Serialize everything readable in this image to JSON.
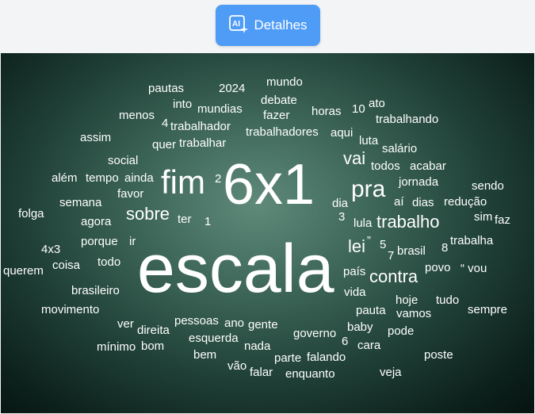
{
  "header": {
    "details_button_label": "Detalhes",
    "button_color": "#4f9cf7",
    "icon": "ai-sparkle-icon"
  },
  "wordcloud": {
    "words": [
      {
        "text": "escala"
      },
      {
        "text": "6x1"
      },
      {
        "text": "fim"
      },
      {
        "text": "pra"
      },
      {
        "text": "contra"
      },
      {
        "text": "trabalho"
      },
      {
        "text": "sobre"
      },
      {
        "text": "vai"
      },
      {
        "text": "lei"
      },
      {
        "text": "”"
      },
      {
        "text": "pautas"
      },
      {
        "text": "2024"
      },
      {
        "text": "mundo"
      },
      {
        "text": "into"
      },
      {
        "text": "mundias"
      },
      {
        "text": "debate"
      },
      {
        "text": "horas"
      },
      {
        "text": "10"
      },
      {
        "text": "ato"
      },
      {
        "text": "menos"
      },
      {
        "text": "4"
      },
      {
        "text": "trabalhador"
      },
      {
        "text": "fazer"
      },
      {
        "text": "trabalhadores"
      },
      {
        "text": "aqui"
      },
      {
        "text": "trabalhando"
      },
      {
        "text": "assim"
      },
      {
        "text": "quer"
      },
      {
        "text": "trabalhar"
      },
      {
        "text": "luta"
      },
      {
        "text": "salário"
      },
      {
        "text": "social"
      },
      {
        "text": "todos"
      },
      {
        "text": "acabar"
      },
      {
        "text": "além"
      },
      {
        "text": "tempo"
      },
      {
        "text": "ainda"
      },
      {
        "text": "2"
      },
      {
        "text": "jornada"
      },
      {
        "text": "sendo"
      },
      {
        "text": "favor"
      },
      {
        "text": "semana"
      },
      {
        "text": "dia"
      },
      {
        "text": "aí"
      },
      {
        "text": "dias"
      },
      {
        "text": "redução"
      },
      {
        "text": "folga"
      },
      {
        "text": "agora"
      },
      {
        "text": "ter"
      },
      {
        "text": "1"
      },
      {
        "text": "3"
      },
      {
        "text": "lula"
      },
      {
        "text": "sim"
      },
      {
        "text": "faz"
      },
      {
        "text": "porque"
      },
      {
        "text": "ir"
      },
      {
        "text": "5"
      },
      {
        "text": "trabalha"
      },
      {
        "text": "4x3"
      },
      {
        "text": "brasil"
      },
      {
        "text": "8"
      },
      {
        "text": "7"
      },
      {
        "text": "querem"
      },
      {
        "text": "coisa"
      },
      {
        "text": "todo"
      },
      {
        "text": "povo"
      },
      {
        "text": "“ vou"
      },
      {
        "text": "país"
      },
      {
        "text": "brasileiro"
      },
      {
        "text": "vida"
      },
      {
        "text": "hoje"
      },
      {
        "text": "tudo"
      },
      {
        "text": "movimento"
      },
      {
        "text": "pauta"
      },
      {
        "text": "vamos"
      },
      {
        "text": "sempre"
      },
      {
        "text": "pessoas"
      },
      {
        "text": "ver"
      },
      {
        "text": "ano"
      },
      {
        "text": "gente"
      },
      {
        "text": "direita"
      },
      {
        "text": "baby"
      },
      {
        "text": "pode"
      },
      {
        "text": "governo"
      },
      {
        "text": "esquerda"
      },
      {
        "text": "6"
      },
      {
        "text": "mínimo"
      },
      {
        "text": "bom"
      },
      {
        "text": "nada"
      },
      {
        "text": "cara"
      },
      {
        "text": "bem"
      },
      {
        "text": "parte"
      },
      {
        "text": "falando"
      },
      {
        "text": "poste"
      },
      {
        "text": "vão"
      },
      {
        "text": "falar"
      },
      {
        "text": "enquanto"
      },
      {
        "text": "veja"
      }
    ]
  }
}
